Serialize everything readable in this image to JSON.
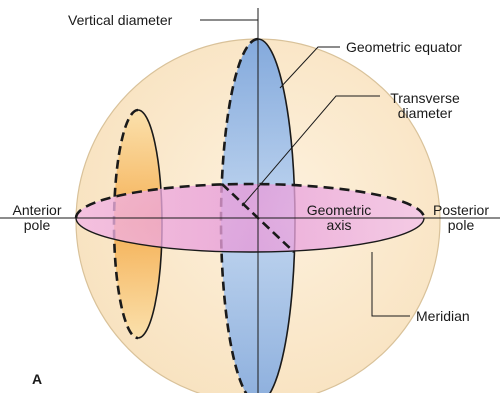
{
  "labels": {
    "vertical_diameter": "Vertical diameter",
    "geometric_equator": "Geometric equator",
    "transverse_line1": "Transverse",
    "transverse_line2": "diameter",
    "anterior_line1": "Anterior",
    "anterior_line2": "pole",
    "posterior_line1": "Posterior",
    "posterior_line2": "pole",
    "geometric_axis_line1": "Geometric",
    "geometric_axis_line2": "axis",
    "meridian": "Meridian",
    "panel_letter": "A"
  },
  "colors": {
    "sphere_fill": "#fbe9cc",
    "sphere_stroke": "#d9c29a",
    "equator_plane": "#f2b8e8",
    "vertical_plane": "#9fc3ef",
    "meridian_plane": "#f6b25c",
    "outline": "#1a1a1a"
  }
}
